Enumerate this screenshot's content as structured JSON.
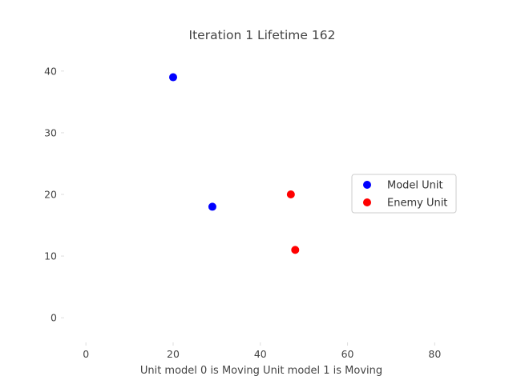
{
  "chart_data": {
    "type": "scatter",
    "title": "Iteration 1 Lifetime 162",
    "xlabel": "Unit model 0 is Moving Unit model 1 is Moving",
    "ylabel": "",
    "xlim": [
      -5,
      86
    ],
    "ylim": [
      -4,
      44
    ],
    "x_ticks": [
      0,
      20,
      40,
      60,
      80
    ],
    "y_ticks": [
      0,
      10,
      20,
      30,
      40
    ],
    "grid": false,
    "legend_position": "center-right",
    "series": [
      {
        "name": "Model Unit",
        "color": "#0000ff",
        "points": [
          {
            "x": 20,
            "y": 39
          },
          {
            "x": 29,
            "y": 18
          }
        ]
      },
      {
        "name": "Enemy Unit",
        "color": "#ff0000",
        "points": [
          {
            "x": 47,
            "y": 20
          },
          {
            "x": 48,
            "y": 11
          }
        ]
      }
    ]
  }
}
